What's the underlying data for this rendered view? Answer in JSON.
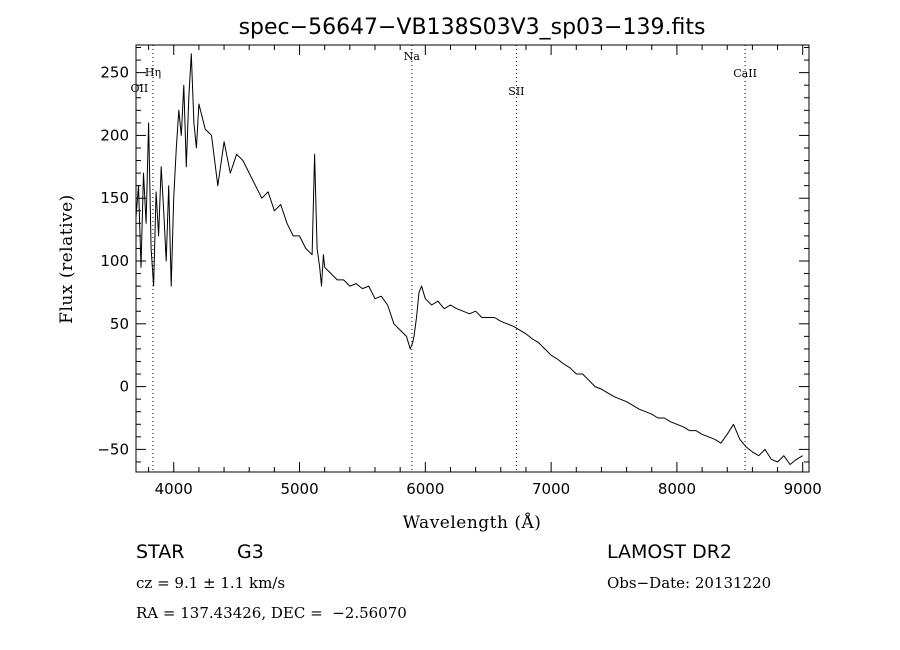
{
  "chart_data": {
    "type": "line",
    "title": "spec−56647−VB138S03V3_sp03−139.fits",
    "xlabel": "Wavelength (Å)",
    "ylabel": "Flux (relative)",
    "xlim": [
      3700,
      9050
    ],
    "ylim": [
      -68,
      272
    ],
    "x_ticks": [
      4000,
      5000,
      6000,
      7000,
      8000,
      9000
    ],
    "x_tick_labels": [
      "4000",
      "5000",
      "6000",
      "7000",
      "8000",
      "9000"
    ],
    "y_ticks": [
      -50,
      0,
      50,
      100,
      150,
      200,
      250
    ],
    "y_tick_labels": [
      "−50",
      "0",
      "50",
      "100",
      "150",
      "200",
      "250"
    ],
    "grid": false,
    "line_markers": [
      {
        "label": "OII",
        "x": 3727,
        "dotted": false
      },
      {
        "label": "Hη",
        "x": 3835,
        "dotted": true
      },
      {
        "label": "Na",
        "x": 5893,
        "dotted": true
      },
      {
        "label": "SII",
        "x": 6724,
        "dotted": true
      },
      {
        "label": "CaII",
        "x": 8542,
        "dotted": true
      }
    ],
    "series": [
      {
        "x": [
          3700,
          3720,
          3740,
          3760,
          3780,
          3800,
          3820,
          3840,
          3860,
          3880,
          3900,
          3920,
          3940,
          3960,
          3980,
          4000,
          4020,
          4040,
          4060,
          4080,
          4100,
          4120,
          4140,
          4160,
          4180,
          4200,
          4250,
          4300,
          4350,
          4400,
          4450,
          4500,
          4550,
          4600,
          4650,
          4700,
          4750,
          4800,
          4850,
          4900,
          4950,
          5000,
          5050,
          5100,
          5120,
          5140,
          5160,
          5175,
          5190,
          5200,
          5250,
          5300,
          5350,
          5400,
          5450,
          5500,
          5550,
          5600,
          5650,
          5700,
          5750,
          5800,
          5850,
          5880,
          5900,
          5910,
          5930,
          5950,
          5970,
          6000,
          6050,
          6100,
          6150,
          6200,
          6250,
          6300,
          6350,
          6400,
          6450,
          6500,
          6550,
          6600,
          6650,
          6700,
          6750,
          6800,
          6850,
          6900,
          6950,
          7000,
          7050,
          7100,
          7150,
          7200,
          7250,
          7300,
          7350,
          7400,
          7450,
          7500,
          7550,
          7600,
          7650,
          7700,
          7750,
          7800,
          7850,
          7900,
          7950,
          8000,
          8050,
          8100,
          8150,
          8200,
          8250,
          8300,
          8350,
          8400,
          8450,
          8500,
          8550,
          8600,
          8650,
          8700,
          8750,
          8800,
          8850,
          8900,
          8950,
          9000
        ],
        "values": [
          135,
          160,
          95,
          170,
          130,
          210,
          110,
          80,
          155,
          120,
          175,
          140,
          100,
          160,
          80,
          150,
          190,
          220,
          200,
          240,
          175,
          230,
          265,
          210,
          190,
          225,
          205,
          200,
          160,
          195,
          170,
          185,
          180,
          170,
          160,
          150,
          155,
          140,
          145,
          130,
          120,
          120,
          110,
          105,
          185,
          110,
          95,
          80,
          105,
          95,
          90,
          85,
          85,
          80,
          82,
          78,
          80,
          70,
          72,
          65,
          50,
          45,
          40,
          30,
          35,
          40,
          55,
          75,
          80,
          70,
          65,
          68,
          62,
          65,
          62,
          60,
          58,
          60,
          55,
          55,
          55,
          52,
          50,
          48,
          45,
          42,
          38,
          35,
          30,
          25,
          22,
          18,
          15,
          10,
          10,
          5,
          0,
          -2,
          -5,
          -8,
          -10,
          -12,
          -15,
          -18,
          -20,
          -22,
          -25,
          -25,
          -28,
          -30,
          -32,
          -35,
          -35,
          -38,
          -40,
          -42,
          -45,
          -38,
          -30,
          -42,
          -48,
          -52,
          -55,
          -50,
          -58,
          -60,
          -55,
          -62,
          -58,
          -55
        ]
      }
    ]
  },
  "info": {
    "object_class": "STAR",
    "subclass": "G3",
    "cz": "cz = 9.1 ± 1.1 km/s",
    "coords": "RA = 137.43426, DEC =  −2.56070",
    "survey": "LAMOST DR2",
    "obs_date": "Obs−Date: 20131220"
  }
}
